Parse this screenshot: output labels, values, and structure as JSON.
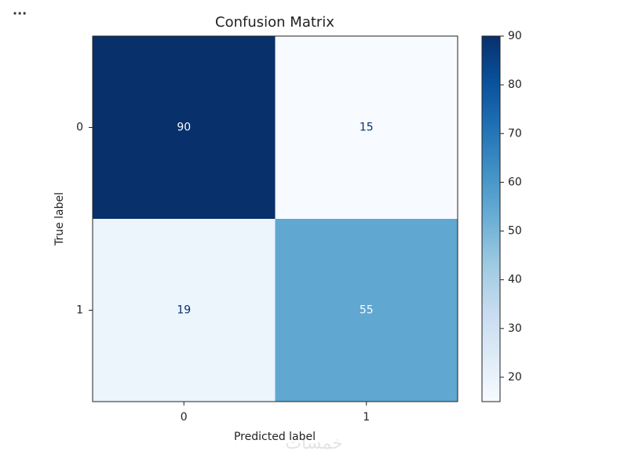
{
  "toolbar": {
    "menu": "..."
  },
  "watermark": "خمسات",
  "chart_data": {
    "type": "heatmap",
    "title": "Confusion Matrix",
    "xlabel": "Predicted label",
    "ylabel": "True label",
    "x_categories": [
      "0",
      "1"
    ],
    "y_categories": [
      "0",
      "1"
    ],
    "values": [
      [
        90,
        15
      ],
      [
        19,
        55
      ]
    ],
    "colormap": "Blues",
    "clim": [
      15,
      90
    ],
    "cticks": [
      20,
      30,
      40,
      50,
      60,
      70,
      80,
      90
    ]
  }
}
